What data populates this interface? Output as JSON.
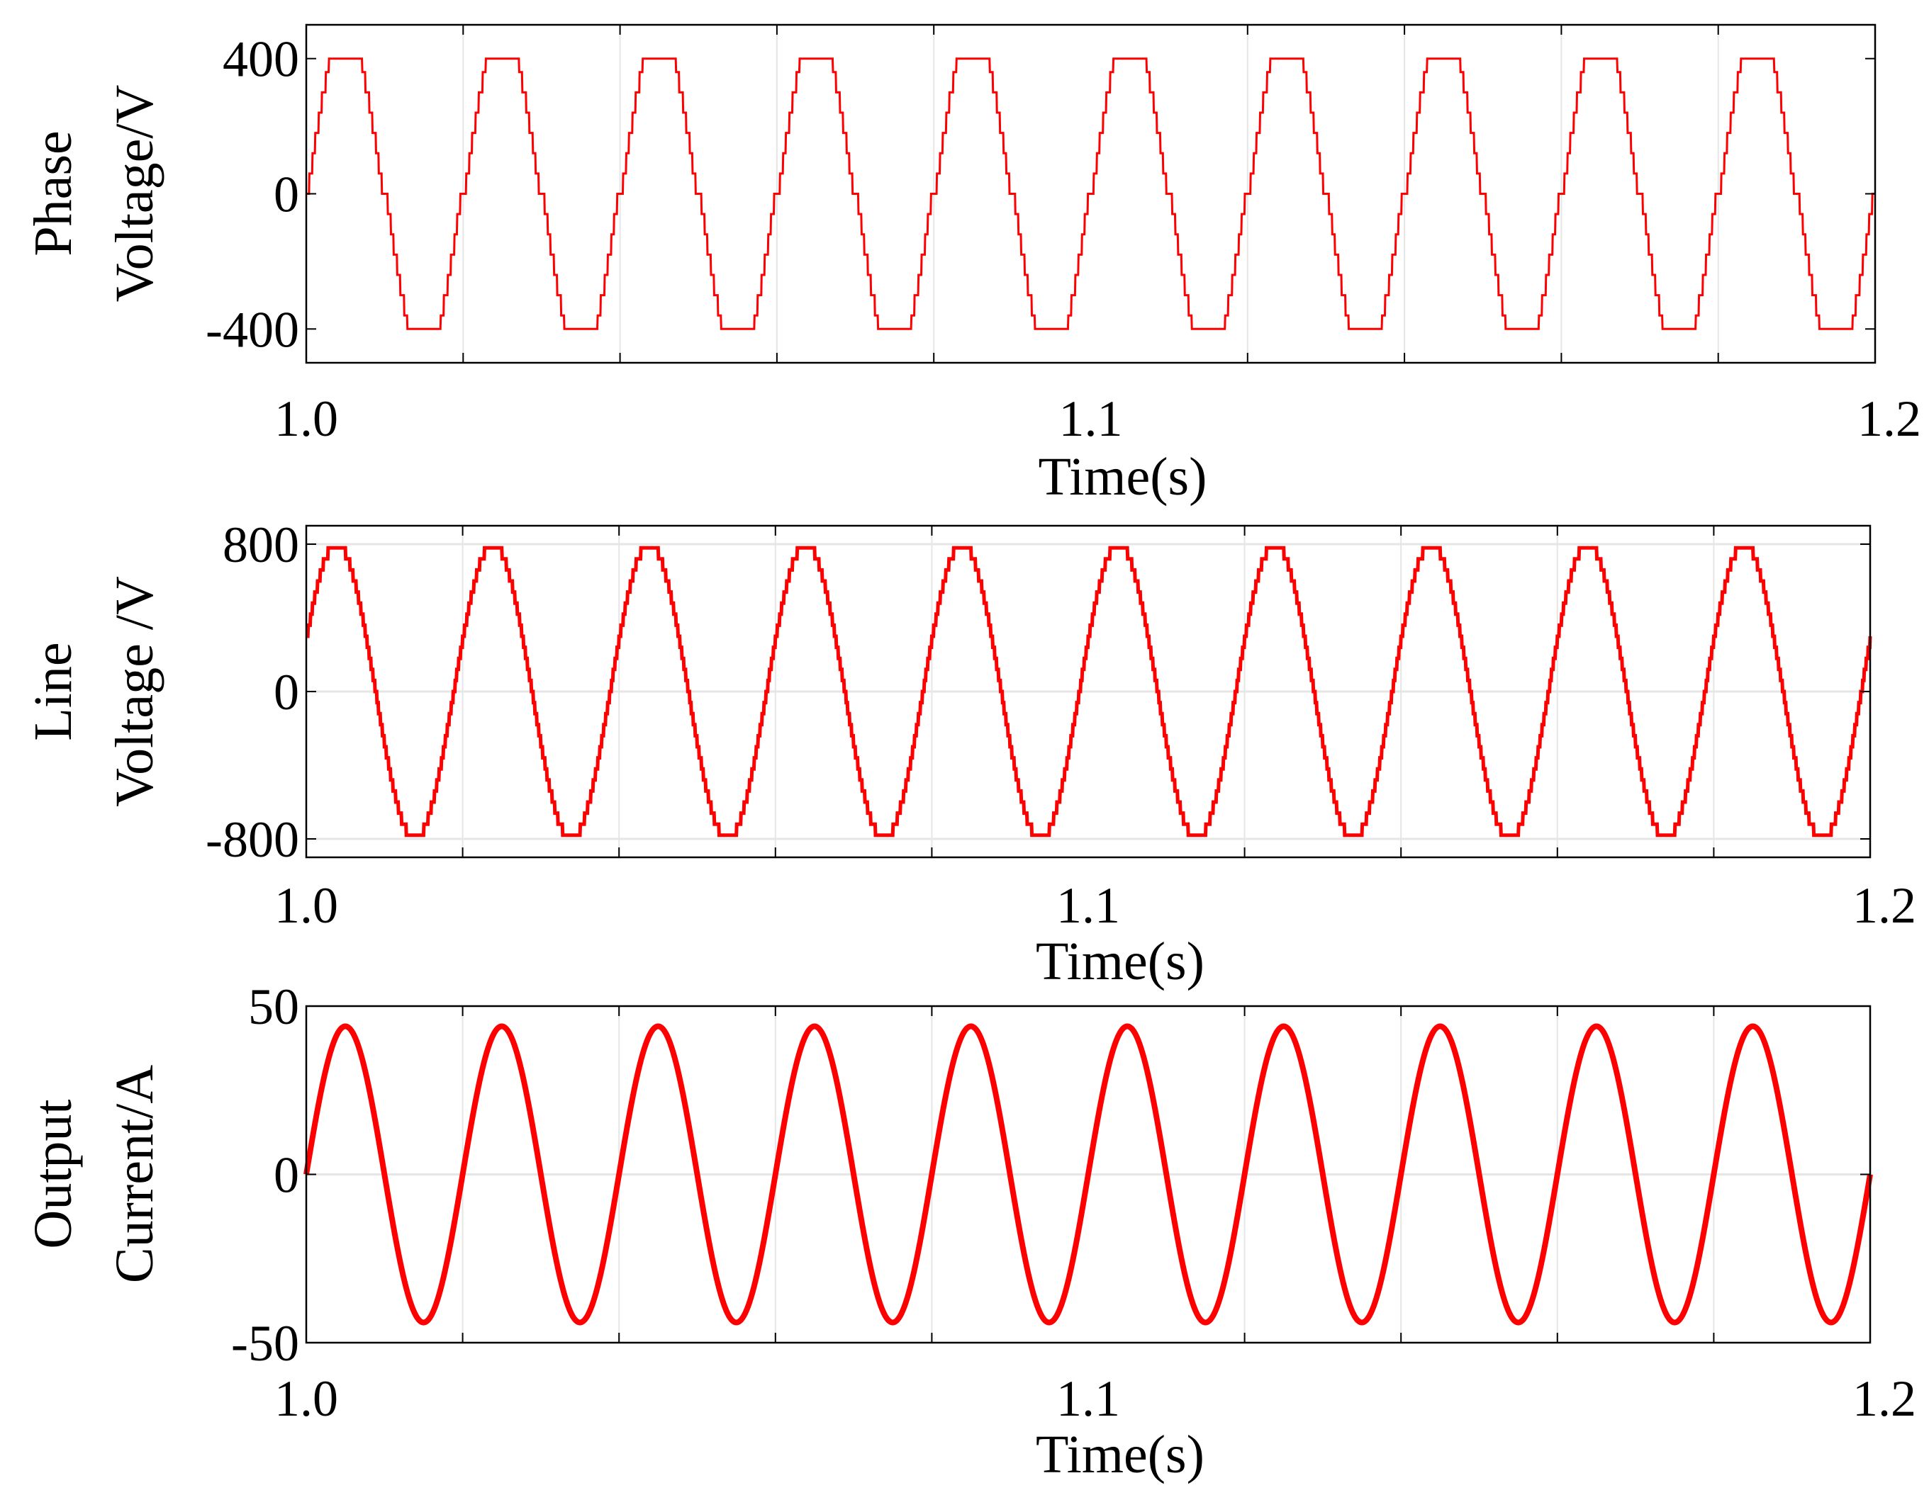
{
  "chart_data": [
    {
      "type": "line",
      "waveform": "phase-voltage",
      "ylabel_lines": [
        "Phase",
        "Voltage/V"
      ],
      "xlabel": "Time(s)",
      "xlim": [
        1.0,
        1.2
      ],
      "ylim": [
        -500,
        500
      ],
      "x_ticks": [
        1.0,
        1.1,
        1.2
      ],
      "x_tick_labels": [
        "1.0",
        "1.1",
        "1.2"
      ],
      "y_ticks": [
        400,
        0,
        -400
      ],
      "y_tick_labels": [
        "400",
        "0",
        "-400"
      ],
      "x_grid": [
        1.02,
        1.04,
        1.06,
        1.08,
        1.12,
        1.14,
        1.16,
        1.18
      ],
      "y_grid": [],
      "frequency_hz": 50,
      "series": [
        {
          "amplitude": 400,
          "levels": [
            0,
            60,
            120,
            180,
            240,
            300,
            360,
            400
          ],
          "color": "#ff0000"
        }
      ]
    },
    {
      "type": "line",
      "waveform": "line-voltage",
      "ylabel_lines": [
        "Line",
        "Voltage /V"
      ],
      "xlabel": "Time(s)",
      "xlim": [
        1.0,
        1.2
      ],
      "ylim": [
        -900,
        900
      ],
      "x_ticks": [
        1.0,
        1.1,
        1.2
      ],
      "x_tick_labels": [
        "1.0",
        "1.1",
        "1.2"
      ],
      "y_ticks": [
        800,
        0,
        -800
      ],
      "y_tick_labels": [
        "800",
        "0",
        "-800"
      ],
      "x_grid": [
        1.02,
        1.04,
        1.06,
        1.08,
        1.12,
        1.14,
        1.16,
        1.18
      ],
      "y_grid": [
        800,
        0,
        -800
      ],
      "frequency_hz": 50,
      "series": [
        {
          "amplitude": 800,
          "step": 60,
          "color": "#ff0000"
        }
      ]
    },
    {
      "type": "line",
      "waveform": "sine",
      "ylabel_lines": [
        "Output",
        "Current/A"
      ],
      "xlabel": "Time(s)",
      "xlim": [
        1.0,
        1.2
      ],
      "ylim": [
        -50,
        50
      ],
      "x_ticks": [
        1.0,
        1.1,
        1.2
      ],
      "x_tick_labels": [
        "1.0",
        "1.1",
        "1.2"
      ],
      "y_ticks": [
        50,
        0,
        -50
      ],
      "y_tick_labels": [
        "50",
        "0",
        "-50"
      ],
      "x_grid": [
        1.02,
        1.04,
        1.06,
        1.08,
        1.12,
        1.14,
        1.16,
        1.18
      ],
      "y_grid": [
        0
      ],
      "frequency_hz": 50,
      "series": [
        {
          "amplitude": 44,
          "color": "#ff0000"
        }
      ]
    }
  ]
}
